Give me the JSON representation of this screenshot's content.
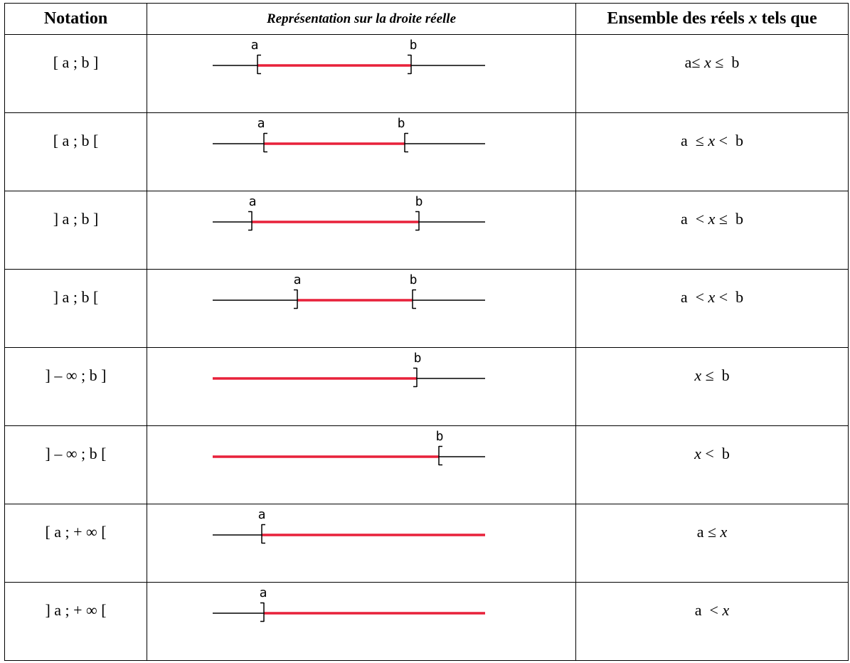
{
  "table": {
    "headers": {
      "notation": "Notation",
      "representation": "Représentation sur la droite réelle",
      "set_prefix": "Ensemble des réels ",
      "set_var": "x",
      "set_suffix": "  tels que"
    },
    "rows": [
      {
        "notation": "[ a ; b ]",
        "left_bracket": "[",
        "right_bracket": "]",
        "left_label": "a",
        "right_label": "b",
        "left_infinite": false,
        "right_infinite": false,
        "ineq": [
          {
            "t": "a≤ ",
            "i": false
          },
          {
            "t": "x",
            "i": true
          },
          {
            "t": " ≤  b",
            "i": false
          }
        ]
      },
      {
        "notation": "[ a ; b [",
        "left_bracket": "[",
        "right_bracket": "[",
        "left_label": "a",
        "right_label": "b",
        "left_infinite": false,
        "right_infinite": false,
        "ineq": [
          {
            "t": "a  ≤ ",
            "i": false
          },
          {
            "t": "x",
            "i": true
          },
          {
            "t": " <  b",
            "i": false
          }
        ]
      },
      {
        "notation": "] a ; b ]",
        "left_bracket": "]",
        "right_bracket": "]",
        "left_label": "a",
        "right_label": "b",
        "left_infinite": false,
        "right_infinite": false,
        "ineq": [
          {
            "t": "a  < ",
            "i": false
          },
          {
            "t": "x",
            "i": true
          },
          {
            "t": " ≤  b",
            "i": false
          }
        ]
      },
      {
        "notation": "] a ; b [",
        "left_bracket": "]",
        "right_bracket": "[",
        "left_label": "a",
        "right_label": "b",
        "left_infinite": false,
        "right_infinite": false,
        "ineq": [
          {
            "t": "a  < ",
            "i": false
          },
          {
            "t": "x",
            "i": true
          },
          {
            "t": " <  b",
            "i": false
          }
        ]
      },
      {
        "notation": "] – ∞ ; b ]",
        "left_bracket": "",
        "right_bracket": "]",
        "left_label": "",
        "right_label": "b",
        "left_infinite": true,
        "right_infinite": false,
        "ineq": [
          {
            "t": "x",
            "i": true
          },
          {
            "t": " ≤  b",
            "i": false
          }
        ]
      },
      {
        "notation": "] – ∞ ; b [",
        "left_bracket": "",
        "right_bracket": "[",
        "left_label": "",
        "right_label": "b",
        "left_infinite": true,
        "right_infinite": false,
        "ineq": [
          {
            "t": "x",
            "i": true
          },
          {
            "t": " <  b",
            "i": false
          }
        ]
      },
      {
        "notation": "[ a ; + ∞ [",
        "left_bracket": "[",
        "right_bracket": "",
        "left_label": "a",
        "right_label": "",
        "left_infinite": false,
        "right_infinite": true,
        "ineq": [
          {
            "t": "a ≤ ",
            "i": false
          },
          {
            "t": "x",
            "i": true
          }
        ]
      },
      {
        "notation": "] a ; + ∞ [",
        "left_bracket": "]",
        "right_bracket": "",
        "left_label": "a",
        "right_label": "",
        "left_infinite": false,
        "right_infinite": true,
        "ineq": [
          {
            "t": "a  < ",
            "i": false
          },
          {
            "t": "x",
            "i": true
          }
        ]
      }
    ]
  },
  "colors": {
    "segment": "#e8213a",
    "line": "#000000"
  }
}
